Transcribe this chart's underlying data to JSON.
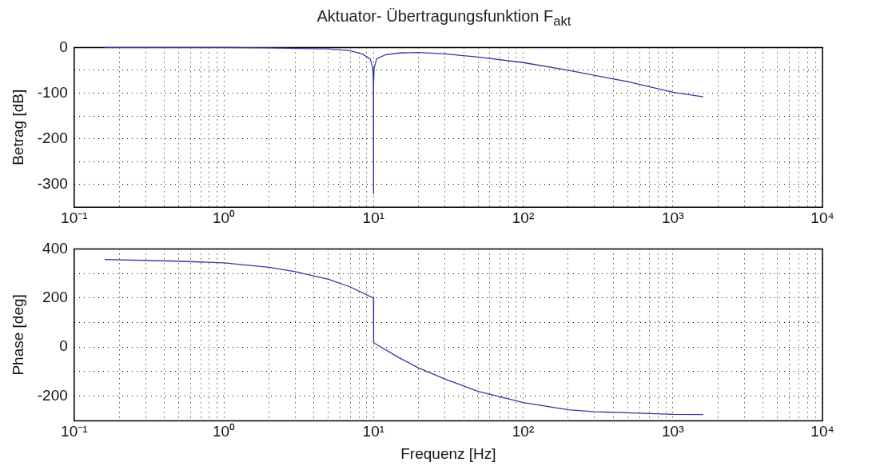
{
  "chart_data": [
    {
      "type": "line",
      "title": "Aktuator- Übertragungsfunktion F$_{akt}$",
      "ylabel": "Betrag [dB]",
      "log": "x",
      "grid": true,
      "legend": false,
      "marker": "none",
      "line_style": "solid",
      "xlim": [
        0.1,
        10000
      ],
      "ylim": [
        -350,
        0
      ],
      "xticks": [
        {
          "value": 0.1,
          "label": "10⁻¹"
        },
        {
          "value": 0.2,
          "label": null
        },
        {
          "value": 0.3,
          "label": null
        },
        {
          "value": 0.4,
          "label": null
        },
        {
          "value": 0.5,
          "label": null
        },
        {
          "value": 0.6,
          "label": null
        },
        {
          "value": 0.7,
          "label": null
        },
        {
          "value": 0.8,
          "label": null
        },
        {
          "value": 0.9,
          "label": null
        },
        {
          "value": 1,
          "label": "10⁰"
        },
        {
          "value": 2,
          "label": null
        },
        {
          "value": 3,
          "label": null
        },
        {
          "value": 4,
          "label": null
        },
        {
          "value": 5,
          "label": null
        },
        {
          "value": 6,
          "label": null
        },
        {
          "value": 7,
          "label": null
        },
        {
          "value": 8,
          "label": null
        },
        {
          "value": 9,
          "label": null
        },
        {
          "value": 10,
          "label": "10¹"
        },
        {
          "value": 20,
          "label": null
        },
        {
          "value": 30,
          "label": null
        },
        {
          "value": 40,
          "label": null
        },
        {
          "value": 50,
          "label": null
        },
        {
          "value": 60,
          "label": null
        },
        {
          "value": 70,
          "label": null
        },
        {
          "value": 80,
          "label": null
        },
        {
          "value": 90,
          "label": null
        },
        {
          "value": 100,
          "label": "10²"
        },
        {
          "value": 200,
          "label": null
        },
        {
          "value": 300,
          "label": null
        },
        {
          "value": 400,
          "label": null
        },
        {
          "value": 500,
          "label": null
        },
        {
          "value": 600,
          "label": null
        },
        {
          "value": 700,
          "label": null
        },
        {
          "value": 800,
          "label": null
        },
        {
          "value": 900,
          "label": null
        },
        {
          "value": 1000,
          "label": "10³"
        },
        {
          "value": 2000,
          "label": null
        },
        {
          "value": 3000,
          "label": null
        },
        {
          "value": 4000,
          "label": null
        },
        {
          "value": 5000,
          "label": null
        },
        {
          "value": 6000,
          "label": null
        },
        {
          "value": 7000,
          "label": null
        },
        {
          "value": 8000,
          "label": null
        },
        {
          "value": 9000,
          "label": null
        },
        {
          "value": 10000,
          "label": "10⁴"
        }
      ],
      "yticks": [
        0,
        {
          "value": -50,
          "label": null
        },
        -100,
        {
          "value": -150,
          "label": null
        },
        -200,
        {
          "value": -250,
          "label": null
        },
        -300
      ],
      "series": [
        {
          "color": "#2e3a9e",
          "x": [
            0.16,
            0.5,
            1,
            2,
            3,
            5,
            7,
            8.5,
            9.5,
            9.9,
            9.98,
            10,
            10.02,
            10.1,
            10.5,
            12,
            15,
            20,
            30,
            50,
            100,
            200,
            500,
            1000,
            1600
          ],
          "values": [
            0,
            0,
            0,
            -1,
            -2,
            -3,
            -7,
            -15,
            -25,
            -45,
            -80,
            -320,
            -80,
            -45,
            -25,
            -16,
            -12,
            -11,
            -14,
            -21,
            -33,
            -50,
            -75,
            -98,
            -108
          ]
        }
      ]
    },
    {
      "type": "line",
      "xlabel": "Frequenz [Hz]",
      "ylabel": "Phase [deg]",
      "log": "x",
      "grid": true,
      "legend": false,
      "marker": "none",
      "line_style": "solid",
      "xlim": [
        0.1,
        10000
      ],
      "ylim": [
        -300,
        400
      ],
      "xticks": [
        {
          "value": 0.1,
          "label": "10⁻¹"
        },
        {
          "value": 0.2,
          "label": null
        },
        {
          "value": 0.3,
          "label": null
        },
        {
          "value": 0.4,
          "label": null
        },
        {
          "value": 0.5,
          "label": null
        },
        {
          "value": 0.6,
          "label": null
        },
        {
          "value": 0.7,
          "label": null
        },
        {
          "value": 0.8,
          "label": null
        },
        {
          "value": 0.9,
          "label": null
        },
        {
          "value": 1,
          "label": "10⁰"
        },
        {
          "value": 2,
          "label": null
        },
        {
          "value": 3,
          "label": null
        },
        {
          "value": 4,
          "label": null
        },
        {
          "value": 5,
          "label": null
        },
        {
          "value": 6,
          "label": null
        },
        {
          "value": 7,
          "label": null
        },
        {
          "value": 8,
          "label": null
        },
        {
          "value": 9,
          "label": null
        },
        {
          "value": 10,
          "label": "10¹"
        },
        {
          "value": 20,
          "label": null
        },
        {
          "value": 30,
          "label": null
        },
        {
          "value": 40,
          "label": null
        },
        {
          "value": 50,
          "label": null
        },
        {
          "value": 60,
          "label": null
        },
        {
          "value": 70,
          "label": null
        },
        {
          "value": 80,
          "label": null
        },
        {
          "value": 90,
          "label": null
        },
        {
          "value": 100,
          "label": "10²"
        },
        {
          "value": 200,
          "label": null
        },
        {
          "value": 300,
          "label": null
        },
        {
          "value": 400,
          "label": null
        },
        {
          "value": 500,
          "label": null
        },
        {
          "value": 600,
          "label": null
        },
        {
          "value": 700,
          "label": null
        },
        {
          "value": 800,
          "label": null
        },
        {
          "value": 900,
          "label": null
        },
        {
          "value": 1000,
          "label": "10³"
        },
        {
          "value": 2000,
          "label": null
        },
        {
          "value": 3000,
          "label": null
        },
        {
          "value": 4000,
          "label": null
        },
        {
          "value": 5000,
          "label": null
        },
        {
          "value": 6000,
          "label": null
        },
        {
          "value": 7000,
          "label": null
        },
        {
          "value": 8000,
          "label": null
        },
        {
          "value": 9000,
          "label": null
        },
        {
          "value": 10000,
          "label": "10⁴"
        }
      ],
      "yticks": [
        400,
        {
          "value": 300,
          "label": null
        },
        200,
        {
          "value": 100,
          "label": null
        },
        0,
        {
          "value": -100,
          "label": null
        },
        -200
      ],
      "series": [
        {
          "color": "#2e3a9e",
          "x": [
            0.16,
            0.5,
            1,
            2,
            3,
            5,
            7,
            9.99,
            10.02,
            14.7,
            20,
            30,
            50,
            100,
            200,
            300,
            1000,
            1600
          ],
          "values": [
            357,
            350,
            343,
            325,
            307,
            276,
            245,
            200,
            18,
            -42,
            -85,
            -130,
            -180,
            -226,
            -255,
            -263,
            -274,
            -275
          ]
        }
      ]
    }
  ]
}
